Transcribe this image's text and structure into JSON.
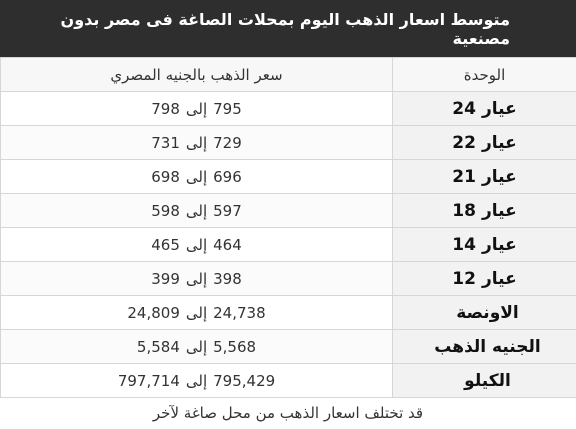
{
  "title": "متوسط اسعار الذهب اليوم بمحلات الصاغة فى مصر بدون مصنعية",
  "table": {
    "headers": {
      "unit": "الوحدة",
      "price": "سعر الذهب بالجنيه المصري"
    },
    "rows": [
      {
        "unit_word": "عيار",
        "unit_num": "24",
        "low": "795",
        "sep": "إلى",
        "high": "798"
      },
      {
        "unit_word": "عيار",
        "unit_num": "22",
        "low": "729",
        "sep": "إلى",
        "high": "731"
      },
      {
        "unit_word": "عيار",
        "unit_num": "21",
        "low": "696",
        "sep": "إلى",
        "high": "698"
      },
      {
        "unit_word": "عيار",
        "unit_num": "18",
        "low": "597",
        "sep": "إلى",
        "high": "598"
      },
      {
        "unit_word": "عيار",
        "unit_num": "14",
        "low": "464",
        "sep": "إلى",
        "high": "465"
      },
      {
        "unit_word": "عيار",
        "unit_num": "12",
        "low": "398",
        "sep": "إلى",
        "high": "399"
      },
      {
        "unit_word": "الاونصة",
        "unit_num": "",
        "low": "24,738",
        "sep": "إلى",
        "high": "24,809"
      },
      {
        "unit_word": "الجنيه الذهب",
        "unit_num": "",
        "low": "5,568",
        "sep": "إلى",
        "high": "5,584"
      },
      {
        "unit_word": "الكيلو",
        "unit_num": "",
        "low": "795,429",
        "sep": "إلى",
        "high": "797,714"
      }
    ]
  },
  "footnote": "قد تختلف اسعار الذهب من محل صاغة لآخر"
}
